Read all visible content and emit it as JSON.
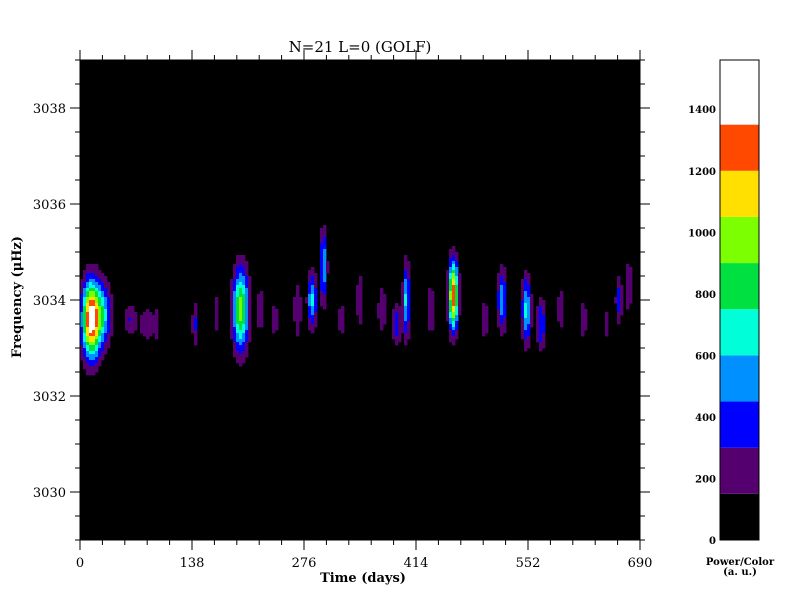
{
  "chart_data": {
    "type": "heatmap",
    "title": "N=21 L=0 (GOLF)",
    "xlabel": "Time (days)",
    "ylabel": "Frequency (μHz)",
    "xlim": [
      0,
      690
    ],
    "ylim": [
      3029,
      3039
    ],
    "xticks": [
      0,
      138,
      276,
      414,
      552,
      690
    ],
    "yticks": [
      3030,
      3032,
      3034,
      3036,
      3038
    ],
    "grid": false,
    "colorbar": {
      "title_line1": "Power/Color",
      "title_line2": "(a. u.)",
      "range": [
        0,
        1560
      ],
      "levels": [
        0,
        150,
        300,
        450,
        600,
        750,
        900,
        1050,
        1200,
        1350,
        1400,
        1560
      ],
      "ticks": [
        0,
        200,
        400,
        600,
        800,
        1000,
        1200,
        1400
      ],
      "colors": [
        "#000000",
        "#54006e",
        "#0000ff",
        "#0090ff",
        "#00ffd8",
        "#00e040",
        "#7cff00",
        "#ffe000",
        "#ff4800",
        "#ffffff"
      ]
    },
    "blobs": [
      {
        "t": 14,
        "f": 3033.6,
        "dt": 8,
        "df": 0.55,
        "p": 1500
      },
      {
        "t": 30,
        "f": 3033.7,
        "dt": 7,
        "df": 0.45,
        "p": 500
      },
      {
        "t": 62,
        "f": 3033.6,
        "dt": 6,
        "df": 0.25,
        "p": 310
      },
      {
        "t": 82,
        "f": 3033.5,
        "dt": 6,
        "df": 0.25,
        "p": 300
      },
      {
        "t": 95,
        "f": 3033.5,
        "dt": 3,
        "df": 0.3,
        "p": 230
      },
      {
        "t": 142,
        "f": 3033.5,
        "dt": 3,
        "df": 0.35,
        "p": 320
      },
      {
        "t": 168,
        "f": 3033.7,
        "dt": 3,
        "df": 0.3,
        "p": 280
      },
      {
        "t": 198,
        "f": 3033.8,
        "dt": 7,
        "df": 0.6,
        "p": 980
      },
      {
        "t": 222,
        "f": 3033.8,
        "dt": 3,
        "df": 0.5,
        "p": 230
      },
      {
        "t": 240,
        "f": 3033.6,
        "dt": 3,
        "df": 0.4,
        "p": 220
      },
      {
        "t": 268,
        "f": 3033.8,
        "dt": 4,
        "df": 0.5,
        "p": 260
      },
      {
        "t": 286,
        "f": 3034.0,
        "dt": 4,
        "df": 0.4,
        "p": 650
      },
      {
        "t": 300,
        "f": 3034.7,
        "dt": 3,
        "df": 0.55,
        "p": 600
      },
      {
        "t": 322,
        "f": 3033.6,
        "dt": 3,
        "df": 0.3,
        "p": 250
      },
      {
        "t": 345,
        "f": 3034.0,
        "dt": 4,
        "df": 0.5,
        "p": 250
      },
      {
        "t": 372,
        "f": 3033.8,
        "dt": 4,
        "df": 0.4,
        "p": 280
      },
      {
        "t": 390,
        "f": 3033.5,
        "dt": 4,
        "df": 0.3,
        "p": 430
      },
      {
        "t": 402,
        "f": 3034.0,
        "dt": 3,
        "df": 0.55,
        "p": 640
      },
      {
        "t": 432,
        "f": 3033.8,
        "dt": 4,
        "df": 0.4,
        "p": 300
      },
      {
        "t": 460,
        "f": 3034.1,
        "dt": 4,
        "df": 0.5,
        "p": 1350
      },
      {
        "t": 498,
        "f": 3033.6,
        "dt": 4,
        "df": 0.35,
        "p": 260
      },
      {
        "t": 520,
        "f": 3034.0,
        "dt": 4,
        "df": 0.45,
        "p": 600
      },
      {
        "t": 550,
        "f": 3033.8,
        "dt": 4,
        "df": 0.5,
        "p": 650
      },
      {
        "t": 568,
        "f": 3033.5,
        "dt": 4,
        "df": 0.4,
        "p": 440
      },
      {
        "t": 592,
        "f": 3033.8,
        "dt": 3,
        "df": 0.4,
        "p": 260
      },
      {
        "t": 620,
        "f": 3033.6,
        "dt": 3,
        "df": 0.3,
        "p": 300
      },
      {
        "t": 648,
        "f": 3033.5,
        "dt": 3,
        "df": 0.3,
        "p": 230
      },
      {
        "t": 664,
        "f": 3034.0,
        "dt": 3,
        "df": 0.35,
        "p": 400
      },
      {
        "t": 676,
        "f": 3034.3,
        "dt": 3,
        "df": 0.5,
        "p": 260
      }
    ]
  }
}
